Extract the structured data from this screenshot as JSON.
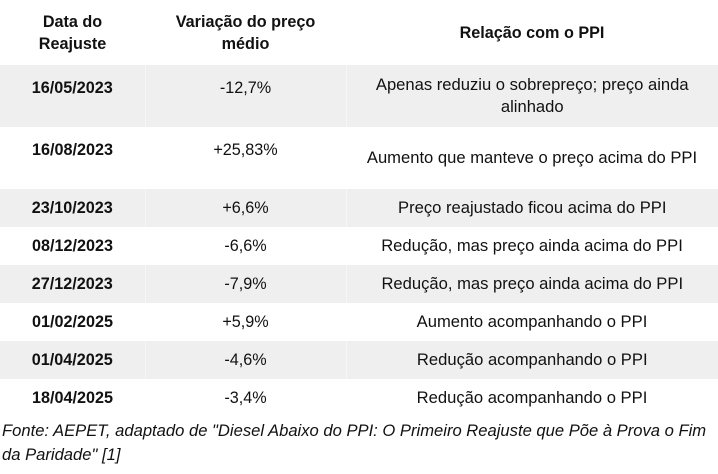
{
  "table": {
    "headers": [
      "Data do Reajuste",
      "Variação do preço médio",
      "Relação com o PPI"
    ],
    "header_lines": {
      "date": [
        "Data do",
        "Reajuste"
      ],
      "variation": [
        "Variação do preço",
        "médio"
      ],
      "relation": [
        "Relação com o PPI"
      ]
    },
    "rows": [
      {
        "date": "16/05/2023",
        "variation": "-12,7%",
        "relation": "Apenas reduziu o sobrepreço; preço ainda alinhado"
      },
      {
        "date": "16/08/2023",
        "variation": "+25,83%",
        "relation": "Aumento que manteve o preço acima do PPI"
      },
      {
        "date": "23/10/2023",
        "variation": "+6,6%",
        "relation": "Preço reajustado ficou acima do PPI"
      },
      {
        "date": "08/12/2023",
        "variation": "-6,6%",
        "relation": "Redução, mas preço ainda acima do PPI"
      },
      {
        "date": "27/12/2023",
        "variation": "-7,9%",
        "relation": "Redução, mas preço ainda acima do PPI"
      },
      {
        "date": "01/02/2025",
        "variation": "+5,9%",
        "relation": "Aumento acompanhando o PPI"
      },
      {
        "date": "01/04/2025",
        "variation": "-4,6%",
        "relation": "Redução acompanhando o PPI"
      },
      {
        "date": "18/04/2025",
        "variation": "-3,4%",
        "relation": "Redução acompanhando o PPI"
      }
    ],
    "colors": {
      "stripe": "#efefef",
      "background": "#ffffff",
      "text": "#111111"
    }
  },
  "caption": {
    "text": "Fonte: AEPET, adaptado de \"Diesel Abaixo do PPI: O Primeiro Reajuste que Põe à Prova o Fim da Paridade\" [1]"
  }
}
